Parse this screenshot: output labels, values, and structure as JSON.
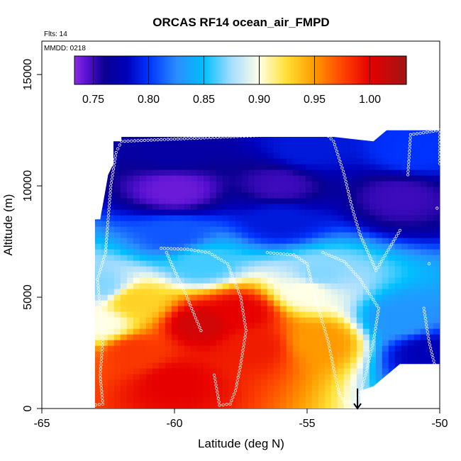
{
  "chart_data": {
    "type": "heatmap",
    "title": "ORCAS RF14 ocean_air_FMPD",
    "flights_label": "Flts: 14",
    "date_label": "MMDD: 0218",
    "xlabel": "Latitude (deg N)",
    "ylabel": "Altitude (m)",
    "xlim": [
      -65,
      -50
    ],
    "ylim": [
      0,
      16500
    ],
    "x_ticks": [
      -65,
      -60,
      -55,
      -50
    ],
    "y_ticks": [
      0,
      5000,
      10000,
      15000
    ],
    "colorbar": {
      "range": [
        0.733,
        1.033
      ],
      "ticks": [
        0.75,
        0.8,
        0.85,
        0.9,
        0.95,
        1.0
      ],
      "tick_labels": [
        "0.75",
        "0.80",
        "0.85",
        "0.90",
        "0.95",
        "1.00"
      ],
      "stops": [
        {
          "v": 0.733,
          "color": "#8a2be2"
        },
        {
          "v": 0.745,
          "color": "#5510d0"
        },
        {
          "v": 0.76,
          "color": "#0a0090"
        },
        {
          "v": 0.78,
          "color": "#0000b8"
        },
        {
          "v": 0.8,
          "color": "#0033ff"
        },
        {
          "v": 0.825,
          "color": "#2a8cff"
        },
        {
          "v": 0.85,
          "color": "#00bfff"
        },
        {
          "v": 0.875,
          "color": "#a6ddff"
        },
        {
          "v": 0.9,
          "color": "#ffffe6"
        },
        {
          "v": 0.925,
          "color": "#ffe032"
        },
        {
          "v": 0.95,
          "color": "#ff9900"
        },
        {
          "v": 0.975,
          "color": "#ff4500"
        },
        {
          "v": 1.0,
          "color": "#e60000"
        },
        {
          "v": 1.033,
          "color": "#a01515"
        }
      ]
    },
    "field_extent": {
      "lat": [
        -63.0,
        -50.0
      ],
      "alt": [
        0,
        12500
      ],
      "outline": [
        [
          -63.0,
          0
        ],
        [
          -63.0,
          5000
        ],
        [
          -63.3,
          5200
        ],
        [
          -63.3,
          6500
        ],
        [
          -63.0,
          6500
        ],
        [
          -63.0,
          8500
        ],
        [
          -62.8,
          8500
        ],
        [
          -62.5,
          10500
        ],
        [
          -62.3,
          11000
        ],
        [
          -62.3,
          12000
        ],
        [
          -62.0,
          12000
        ],
        [
          -62.0,
          12200
        ],
        [
          -54.0,
          12200
        ],
        [
          -52.5,
          12000
        ],
        [
          -52.0,
          12500
        ],
        [
          -50.0,
          12500
        ],
        [
          -50.0,
          2000
        ],
        [
          -51.5,
          2000
        ],
        [
          -52.5,
          1000
        ],
        [
          -53.0,
          800
        ],
        [
          -53.0,
          0
        ]
      ]
    },
    "field_features": [
      {
        "lat": -59.0,
        "alt": 3800,
        "value": 1.01
      },
      {
        "lat": -57.5,
        "alt": 4300,
        "value": 1.0
      },
      {
        "lat": -60.0,
        "alt": 1200,
        "value": 1.0
      },
      {
        "lat": -61.5,
        "alt": 2500,
        "value": 0.98
      },
      {
        "lat": -57.0,
        "alt": 2800,
        "value": 0.99
      },
      {
        "lat": -54.5,
        "alt": 3000,
        "value": 0.95
      },
      {
        "lat": -61.5,
        "alt": 4800,
        "value": 0.93
      },
      {
        "lat": -62.8,
        "alt": 3800,
        "value": 0.9
      },
      {
        "lat": -62.8,
        "alt": 5500,
        "value": 0.87
      },
      {
        "lat": -59.0,
        "alt": 6500,
        "value": 0.86
      },
      {
        "lat": -54.5,
        "alt": 6000,
        "value": 0.87
      },
      {
        "lat": -55.0,
        "alt": 5300,
        "value": 0.9
      },
      {
        "lat": -51.5,
        "alt": 4000,
        "value": 0.83
      },
      {
        "lat": -50.5,
        "alt": 2500,
        "value": 0.78
      },
      {
        "lat": -60.0,
        "alt": 7800,
        "value": 0.81
      },
      {
        "lat": -56.0,
        "alt": 8500,
        "value": 0.79
      },
      {
        "lat": -60.0,
        "alt": 9800,
        "value": 0.74
      },
      {
        "lat": -56.0,
        "alt": 10000,
        "value": 0.75
      },
      {
        "lat": -51.5,
        "alt": 9500,
        "value": 0.75
      },
      {
        "lat": -60.0,
        "alt": 11500,
        "value": 0.77
      },
      {
        "lat": -55.0,
        "alt": 11600,
        "value": 0.79
      },
      {
        "lat": -51.0,
        "alt": 11500,
        "value": 0.8
      }
    ],
    "flight_track": [
      [
        -63.1,
        150
      ],
      [
        -62.7,
        200
      ],
      [
        -62.8,
        1500
      ],
      [
        -62.7,
        3000
      ],
      [
        -62.8,
        4500
      ],
      [
        -62.9,
        5800
      ],
      [
        -62.6,
        7000
      ],
      [
        -62.5,
        8500
      ],
      [
        -62.4,
        10000
      ],
      [
        -62.2,
        11500
      ],
      [
        -62.0,
        12000
      ],
      [
        -61.0,
        12050
      ],
      [
        -60.0,
        12100
      ],
      [
        -59.0,
        12150
      ],
      [
        -58.0,
        12200
      ],
      [
        -57.0,
        12250
      ],
      [
        -56.0,
        12300
      ],
      [
        -55.0,
        12350
      ],
      [
        -54.3,
        12350
      ],
      [
        -54.0,
        12000
      ],
      [
        -53.6,
        10500
      ],
      [
        -53.3,
        9000
      ],
      [
        -53.0,
        7800
      ],
      [
        -52.7,
        7000
      ],
      [
        -52.4,
        6200
      ],
      [
        -52.0,
        7000
      ],
      [
        -51.5,
        8000
      ],
      [
        -51.2,
        10500
      ],
      [
        -51.1,
        12300
      ],
      [
        -50.0,
        12500
      ],
      [
        -50.0,
        11000
      ],
      [
        -50.1,
        9000
      ],
      [
        -50.4,
        6500
      ],
      [
        -50.6,
        4500
      ],
      [
        -50.4,
        3000
      ],
      [
        -50.2,
        2000
      ],
      [
        -60.5,
        7200
      ],
      [
        -59.5,
        7150
      ],
      [
        -58.7,
        7000
      ],
      [
        -58.0,
        6500
      ],
      [
        -57.5,
        5000
      ],
      [
        -57.3,
        3500
      ],
      [
        -57.5,
        2000
      ],
      [
        -57.7,
        800
      ],
      [
        -57.9,
        200
      ],
      [
        -58.3,
        150
      ],
      [
        -58.5,
        1500
      ],
      [
        -59.0,
        3500
      ],
      [
        -59.6,
        5200
      ],
      [
        -60.0,
        6200
      ],
      [
        -60.3,
        7000
      ],
      [
        -56.5,
        7000
      ],
      [
        -55.5,
        6900
      ],
      [
        -55.0,
        6500
      ],
      [
        -54.8,
        5500
      ],
      [
        -54.5,
        4200
      ],
      [
        -54.2,
        3000
      ],
      [
        -54.0,
        1800
      ],
      [
        -53.8,
        700
      ],
      [
        -53.6,
        300
      ],
      [
        -53.2,
        300
      ],
      [
        -53.0,
        600
      ],
      [
        -52.8,
        1500
      ],
      [
        -52.5,
        3000
      ],
      [
        -52.3,
        4500
      ],
      [
        -53.0,
        5800
      ],
      [
        -53.6,
        6600
      ],
      [
        -54.4,
        7000
      ]
    ],
    "arrow_marker": {
      "lat": -53.1,
      "alt_from": 900,
      "alt_to": 0
    }
  }
}
